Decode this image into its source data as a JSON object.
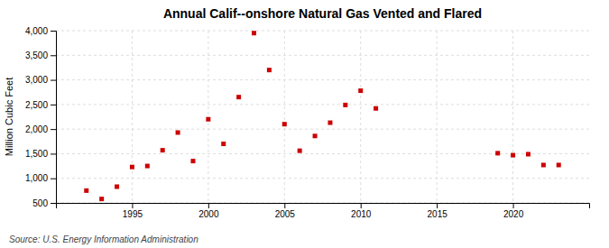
{
  "chart_data": {
    "type": "scatter",
    "title": "Annual Calif--onshore Natural Gas Vented and Flared",
    "ylabel": "Million Cubic Feet",
    "source": "Source: U.S. Energy Information Administration",
    "x": [
      1992,
      1993,
      1994,
      1995,
      1996,
      1997,
      1998,
      1999,
      2000,
      2001,
      2002,
      2003,
      2004,
      2005,
      2006,
      2007,
      2008,
      2009,
      2010,
      2011,
      2019,
      2020,
      2021,
      2022,
      2023
    ],
    "values": [
      750,
      580,
      830,
      1230,
      1250,
      1570,
      1930,
      1350,
      2200,
      1700,
      2650,
      3950,
      3200,
      2100,
      1560,
      1860,
      2130,
      2490,
      2780,
      2420,
      1510,
      1470,
      1490,
      1270,
      1270
    ],
    "color": "#cc0000",
    "marker": "square",
    "xlim": [
      1990,
      2025
    ],
    "ylim": [
      500,
      4000
    ],
    "xticks": [
      1995,
      2000,
      2005,
      2010,
      2015,
      2020
    ],
    "yticks": [
      500,
      {
        "value": 1000,
        "label": "1,000"
      },
      {
        "value": 1500,
        "label": "1,500"
      },
      {
        "value": 2000,
        "label": "2,000"
      },
      {
        "value": 2500,
        "label": "2,500"
      },
      {
        "value": 3000,
        "label": "3,000"
      },
      {
        "value": 3500,
        "label": "3,500"
      },
      {
        "value": 4000,
        "label": "4,000"
      }
    ],
    "grid": true
  }
}
